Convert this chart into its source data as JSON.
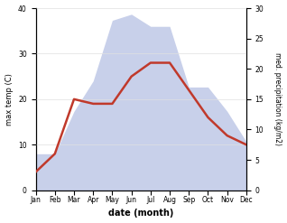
{
  "months": [
    "Jan",
    "Feb",
    "Mar",
    "Apr",
    "May",
    "Jun",
    "Jul",
    "Aug",
    "Sep",
    "Oct",
    "Nov",
    "Dec"
  ],
  "temp": [
    4,
    8,
    20,
    19,
    19,
    25,
    28,
    28,
    22,
    16,
    12,
    10
  ],
  "precip": [
    6,
    6,
    13,
    18,
    28,
    29,
    27,
    27,
    17,
    17,
    13,
    8
  ],
  "temp_color": "#c0392b",
  "precip_color_fill": "#c8d0ea",
  "ylabel_left": "max temp (C)",
  "ylabel_right": "med. precipitation (kg/m2)",
  "xlabel": "date (month)",
  "ylim_left": [
    0,
    40
  ],
  "ylim_right": [
    0,
    30
  ],
  "bg_color": "#ffffff",
  "grid_color": "#e0e0e0"
}
